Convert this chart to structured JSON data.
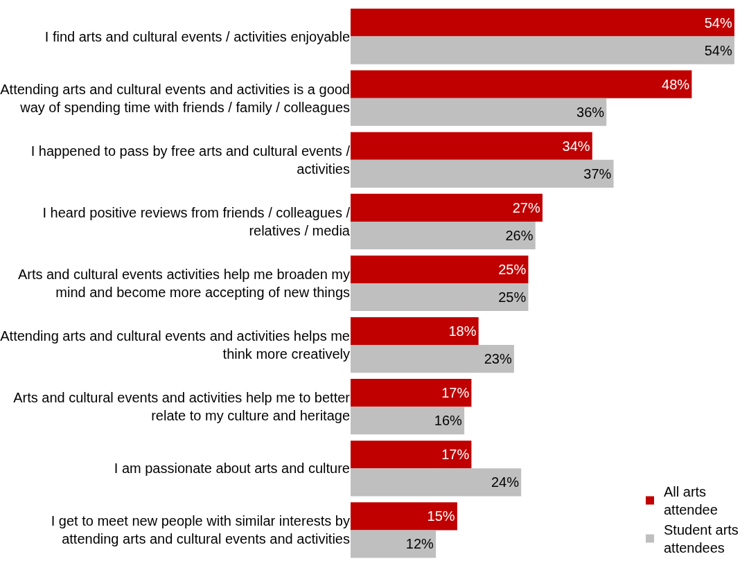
{
  "chart_data": {
    "type": "bar",
    "orientation": "horizontal",
    "legend": "bottom right",
    "categories": [
      "I find arts and cultural events / activities enjoyable",
      "Attending arts and cultural events and activities is a good\nway of spending time with friends / family / colleagues",
      "I happened to pass by free arts and cultural events /\nactivities",
      "I heard positive reviews from friends / colleagues /\nrelatives / media",
      "Arts and cultural events activities help me broaden my\nmind and become more accepting of new things",
      "Attending arts and cultural events and activities helps me\nthink more creatively",
      "Arts and cultural events and activities help me to better\nrelate to my culture and heritage",
      "I am passionate about arts and culture",
      "I get to meet new people with similar interests by\nattending arts and cultural events and activities"
    ],
    "series": [
      {
        "name": "All arts attendee",
        "color": "#c00000",
        "values": [
          54,
          48,
          34,
          27,
          25,
          18,
          17,
          17,
          15
        ],
        "value_labels": [
          "54%",
          "48%",
          "34%",
          "27%",
          "25%",
          "18%",
          "17%",
          "17%",
          "15%"
        ]
      },
      {
        "name": "Student arts attendees",
        "color": "#bfbfbf",
        "values": [
          54,
          36,
          37,
          26,
          25,
          23,
          16,
          24,
          12
        ],
        "value_labels": [
          "54%",
          "36%",
          "37%",
          "26%",
          "25%",
          "23%",
          "16%",
          "24%",
          "12%"
        ]
      }
    ]
  }
}
